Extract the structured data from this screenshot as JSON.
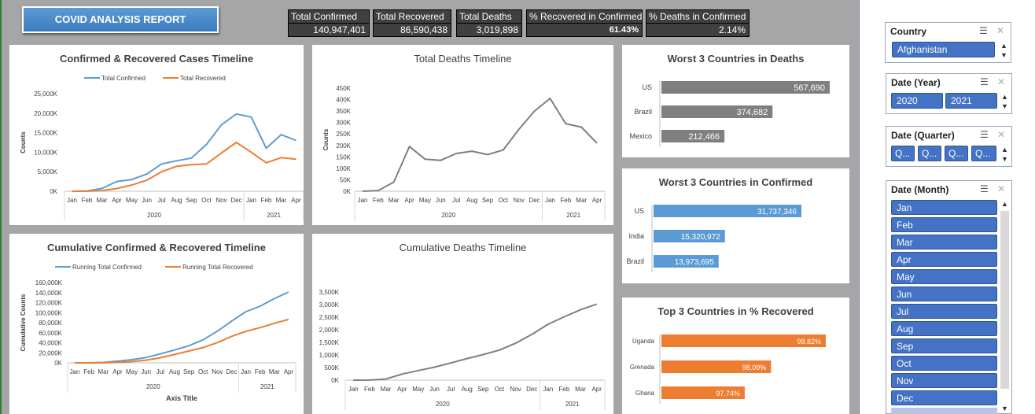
{
  "report": {
    "title": "COVID ANALYSIS REPORT"
  },
  "kpis": [
    {
      "label": "Total Confirmed",
      "value": "140,947,401"
    },
    {
      "label": "Total Recovered",
      "value": "86,590,438"
    },
    {
      "label": "Total Deaths",
      "value": "3,019,898"
    },
    {
      "label": "% Recovered in Confirmed",
      "value": "61.43%"
    },
    {
      "label": "% Deaths in Confirmed",
      "value": "2.14%"
    }
  ],
  "colors": {
    "blue": "#5b9bd5",
    "orange": "#ed7d31",
    "gray": "#7f7f7f",
    "slicer": "#4472c4"
  },
  "chart_data": [
    {
      "id": "confirmed_recovered",
      "type": "line",
      "title": "Confirmed & Recovered Cases Timeline",
      "xlabel": "",
      "ylabel": "Counts",
      "months": [
        "Jan",
        "Feb",
        "Mar",
        "Apr",
        "May",
        "Jun",
        "Jul",
        "Aug",
        "Sep",
        "Oct",
        "Nov",
        "Dec",
        "Jan",
        "Feb",
        "Mar",
        "Apr"
      ],
      "years": [
        "2020",
        "2021"
      ],
      "yticks": [
        "0K",
        "5,000K",
        "10,000K",
        "15,000K",
        "20,000K",
        "25,000K"
      ],
      "ylim": [
        0,
        25000
      ],
      "legend": "top",
      "series": [
        {
          "name": "Total Confirmed",
          "color": "#5b9bd5",
          "values": [
            10,
            80,
            700,
            2500,
            3000,
            4400,
            7000,
            7800,
            8500,
            12000,
            17000,
            19800,
            19000,
            11000,
            14500,
            13000
          ]
        },
        {
          "name": "Total Recovered",
          "color": "#ed7d31",
          "values": [
            0,
            20,
            150,
            700,
            1600,
            2800,
            5000,
            6400,
            6800,
            7000,
            9800,
            12500,
            10000,
            7300,
            8600,
            8200
          ]
        }
      ]
    },
    {
      "id": "total_deaths",
      "type": "line",
      "title": "Total Deaths Timeline",
      "xlabel": "",
      "ylabel": "Counts",
      "months": [
        "Jan",
        "Feb",
        "Mar",
        "Apr",
        "May",
        "Jun",
        "Jul",
        "Aug",
        "Sep",
        "Oct",
        "Nov",
        "Dec",
        "Jan",
        "Feb",
        "Mar",
        "Apr"
      ],
      "years": [
        "2020",
        "2021"
      ],
      "yticks": [
        "0K",
        "50K",
        "100K",
        "150K",
        "200K",
        "250K",
        "300K",
        "350K",
        "400K",
        "450K"
      ],
      "ylim": [
        0,
        450
      ],
      "series": [
        {
          "name": "",
          "color": "#7f7f7f",
          "values": [
            0,
            3,
            40,
            195,
            140,
            135,
            165,
            175,
            160,
            180,
            270,
            350,
            405,
            295,
            280,
            210
          ]
        }
      ]
    },
    {
      "id": "cumulative_confirmed_recovered",
      "type": "line",
      "title": "Cumulative Confirmed & Recovered  Timeline",
      "xlabel": "Axis Title",
      "ylabel": "Cumulative Counts",
      "months": [
        "Jan",
        "Feb",
        "Mar",
        "Apr",
        "May",
        "Jun",
        "Jul",
        "Aug",
        "Sep",
        "Oct",
        "Nov",
        "Dec",
        "Jan",
        "Feb",
        "Mar",
        "Apr"
      ],
      "years": [
        "2020",
        "2021"
      ],
      "yticks": [
        "0K",
        "20,000K",
        "40,000K",
        "60,000K",
        "80,000K",
        "100,000K",
        "120,000K",
        "140,000K",
        "160,000K"
      ],
      "ylim": [
        0,
        160000
      ],
      "legend": "top",
      "series": [
        {
          "name": "Running Total Confirmed",
          "color": "#5b9bd5",
          "values": [
            10,
            100,
            800,
            3300,
            6300,
            10700,
            17700,
            25500,
            34000,
            46000,
            63000,
            83000,
            102000,
            113000,
            128000,
            141000
          ]
        },
        {
          "name": "Running Total Recovered",
          "color": "#ed7d31",
          "values": [
            0,
            20,
            170,
            870,
            2470,
            5270,
            10270,
            16670,
            23470,
            30470,
            40270,
            52770,
            62770,
            70070,
            78670,
            86600
          ]
        }
      ]
    },
    {
      "id": "cumulative_deaths",
      "type": "line",
      "title": "Cumulative Deaths Timeline",
      "xlabel": "",
      "ylabel": "",
      "months": [
        "Jan",
        "Feb",
        "Mar",
        "Apr",
        "May",
        "Jun",
        "Jul",
        "Aug",
        "Sep",
        "Oct",
        "Nov",
        "Dec",
        "Jan",
        "Feb",
        "Mar",
        "Apr"
      ],
      "years": [
        "2020",
        "2021"
      ],
      "yticks": [
        "0K",
        "500K",
        "1,000K",
        "1,500K",
        "2,000K",
        "2,500K",
        "3,000K",
        "3,500K"
      ],
      "ylim": [
        0,
        3500
      ],
      "series": [
        {
          "name": "",
          "color": "#7f7f7f",
          "values": [
            0,
            3,
            45,
            240,
            380,
            515,
            680,
            855,
            1015,
            1195,
            1465,
            1815,
            2220,
            2515,
            2795,
            3020
          ]
        }
      ]
    },
    {
      "id": "worst_deaths",
      "type": "bar",
      "title": "Worst 3 Countries in Deaths",
      "categories": [
        "US",
        "Brazil",
        "Mexico"
      ],
      "values": [
        567690,
        374682,
        212466
      ],
      "labels": [
        "567,690",
        "374,682",
        "212,466"
      ],
      "color": "#7f7f7f"
    },
    {
      "id": "worst_confirmed",
      "type": "bar",
      "title": "Worst 3 Countries in Confirmed",
      "categories": [
        "US",
        "India",
        "Brazil"
      ],
      "values": [
        31737346,
        15320972,
        13973695
      ],
      "labels": [
        "31,737,346",
        "15,320,972",
        "13,973,695"
      ],
      "color": "#5b9bd5"
    },
    {
      "id": "top_recovered",
      "type": "bar",
      "title": "Top 3 Countries in % Recovered",
      "categories": [
        "Uganda",
        "Grenada",
        "Ghana"
      ],
      "values": [
        98.82,
        98.09,
        97.74
      ],
      "labels": [
        "98.82%",
        "98.09%",
        "97.74%"
      ],
      "color": "#ed7d31"
    }
  ],
  "slicers": {
    "country": {
      "header": "Country",
      "selected": "Afghanistan"
    },
    "year": {
      "header": "Date (Year)",
      "items": [
        "2020",
        "2021"
      ]
    },
    "quarter": {
      "header": "Date (Quarter)",
      "items": [
        "Q...",
        "Q...",
        "Q...",
        "Q..."
      ]
    },
    "month": {
      "header": "Date (Month)",
      "items": [
        "Jan",
        "Feb",
        "Mar",
        "Apr",
        "May",
        "Jun",
        "Jul",
        "Aug",
        "Sep",
        "Oct",
        "Nov",
        "Dec"
      ]
    }
  }
}
